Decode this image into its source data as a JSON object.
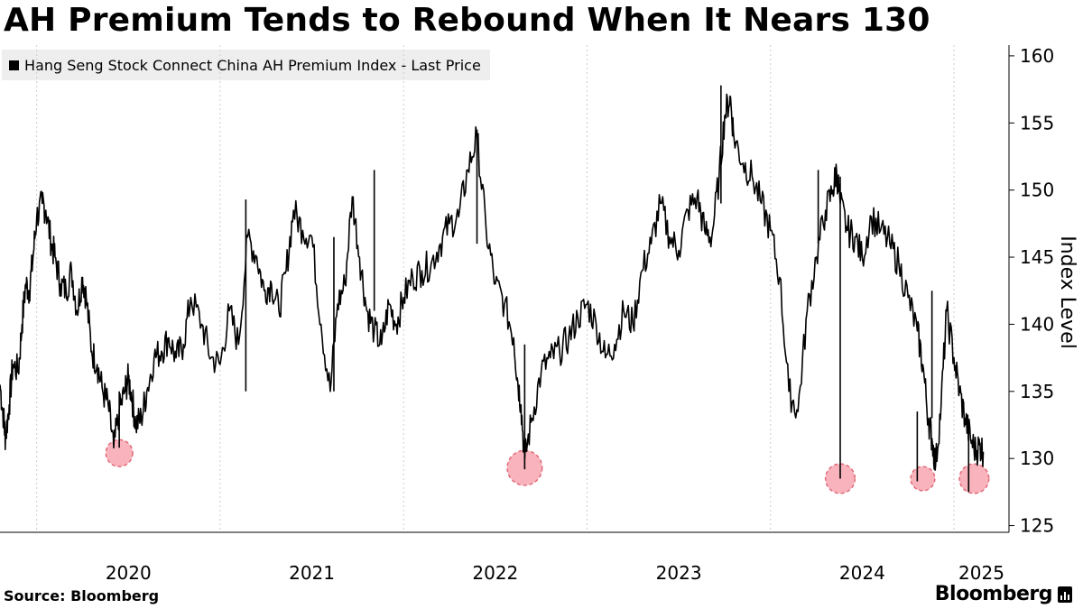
{
  "title": "AH Premium Tends to Rebound When It Nears 130",
  "source": "Source: Bloomberg",
  "brand": "Bloomberg",
  "chart_data": {
    "type": "line",
    "title": "AH Premium Tends to Rebound When It Nears 130",
    "ylabel": "Index Level",
    "xlabel": "",
    "ylim": [
      124.5,
      160.8
    ],
    "xlim": [
      2019.8,
      2025.3
    ],
    "y_ticks": [
      125,
      130,
      135,
      140,
      145,
      150,
      155,
      160
    ],
    "x_tick_labels": [
      "2020",
      "2021",
      "2022",
      "2023",
      "2024",
      "2025"
    ],
    "x_tick_positions": [
      2020.0,
      2021.0,
      2022.0,
      2023.0,
      2024.0,
      2025.0
    ],
    "legend": "Hang Seng Stock Connect China AH Premium Index - Last Price",
    "legend_position": "top-left",
    "colors": {
      "line": "#000000",
      "highlight_fill": "#f7a6b0",
      "highlight_edge": "#e06a78",
      "grid": "#cccccc"
    },
    "series": [
      {
        "name": "Hang Seng Stock Connect China AH Premium Index - Last Price",
        "x": [
          2019.8,
          2019.82,
          2019.83,
          2019.85,
          2019.87,
          2019.9,
          2019.92,
          2019.94,
          2019.96,
          2019.98,
          2020.0,
          2020.03,
          2020.05,
          2020.08,
          2020.1,
          2020.13,
          2020.16,
          2020.19,
          2020.22,
          2020.25,
          2020.27,
          2020.3,
          2020.33,
          2020.36,
          2020.39,
          2020.42,
          2020.45,
          2020.48,
          2020.5,
          2020.52,
          2020.54,
          2020.57,
          2020.6,
          2020.64,
          2020.68,
          2020.72,
          2020.76,
          2020.8,
          2020.84,
          2020.9,
          2020.95,
          2021.0,
          2021.05,
          2021.1,
          2021.15,
          2021.2,
          2021.24,
          2021.28,
          2021.32,
          2021.36,
          2021.4,
          2021.45,
          2021.5,
          2021.55,
          2021.6,
          2021.64,
          2021.68,
          2021.72,
          2021.76,
          2021.8,
          2021.84,
          2021.88,
          2021.92,
          2021.96,
          2022.0,
          2022.05,
          2022.1,
          2022.15,
          2022.2,
          2022.25,
          2022.3,
          2022.35,
          2022.4,
          2022.45,
          2022.5,
          2022.55,
          2022.6,
          2022.62,
          2022.64,
          2022.66,
          2022.7,
          2022.75,
          2022.8,
          2022.85,
          2022.9,
          2022.95,
          2023.0,
          2023.05,
          2023.1,
          2023.15,
          2023.2,
          2023.25,
          2023.3,
          2023.35,
          2023.4,
          2023.45,
          2023.5,
          2023.55,
          2023.6,
          2023.64,
          2023.68,
          2023.72,
          2023.75,
          2023.78,
          2023.8,
          2023.85,
          2023.9,
          2023.95,
          2024.0,
          2024.05,
          2024.1,
          2024.15,
          2024.2,
          2024.25,
          2024.3,
          2024.34,
          2024.36,
          2024.38,
          2024.42,
          2024.46,
          2024.5,
          2024.55,
          2024.6,
          2024.65,
          2024.7,
          2024.75,
          2024.8,
          2024.83,
          2024.86,
          2024.88,
          2024.9,
          2024.93,
          2024.96,
          2025.0,
          2025.03,
          2025.06,
          2025.09,
          2025.12,
          2025.14,
          2025.16
        ],
        "values": [
          135.5,
          133.0,
          131.5,
          134.0,
          137.0,
          136.5,
          140.0,
          143.0,
          142.5,
          145.0,
          148.0,
          149.0,
          148.5,
          146.0,
          145.0,
          143.0,
          142.5,
          144.0,
          141.0,
          143.5,
          142.0,
          138.0,
          137.0,
          135.0,
          134.0,
          130.8,
          133.5,
          135.0,
          136.0,
          134.5,
          132.5,
          133.0,
          135.0,
          137.5,
          138.0,
          139.0,
          137.5,
          138.5,
          142.0,
          140.0,
          137.5,
          137.0,
          141.0,
          138.5,
          146.5,
          145.0,
          142.5,
          143.0,
          141.0,
          144.0,
          148.5,
          147.0,
          146.5,
          140.0,
          135.0,
          141.5,
          143.0,
          149.5,
          145.0,
          141.0,
          139.5,
          138.5,
          141.5,
          140.0,
          142.0,
          143.5,
          144.0,
          144.5,
          146.0,
          147.5,
          148.0,
          151.5,
          154.0,
          147.0,
          143.0,
          141.5,
          139.0,
          136.0,
          134.0,
          130.0,
          133.0,
          136.5,
          137.5,
          138.0,
          139.0,
          140.5,
          141.5,
          140.0,
          137.5,
          138.5,
          141.0,
          140.0,
          144.0,
          146.0,
          149.0,
          146.5,
          145.5,
          148.5,
          149.5,
          147.0,
          146.5,
          151.0,
          155.5,
          157.0,
          154.0,
          152.0,
          151.0,
          149.0,
          147.0,
          143.5,
          135.0,
          133.5,
          141.0,
          145.0,
          148.5,
          150.0,
          151.5,
          149.0,
          147.0,
          146.5,
          145.0,
          148.0,
          147.0,
          146.0,
          144.5,
          142.0,
          139.5,
          137.0,
          133.0,
          131.5,
          129.5,
          134.0,
          141.0,
          137.5,
          135.0,
          133.0,
          131.5,
          130.5,
          131.0,
          130.5
        ],
        "spikes": [
          {
            "x": 2020.45,
            "low": 130.8,
            "high": 135.0
          },
          {
            "x": 2021.14,
            "low": 135.0,
            "high": 149.3
          },
          {
            "x": 2021.62,
            "low": 135.0,
            "high": 146.5
          },
          {
            "x": 2021.84,
            "low": 141.0,
            "high": 151.5
          },
          {
            "x": 2022.66,
            "low": 129.2,
            "high": 138.5
          },
          {
            "x": 2022.4,
            "low": 146.0,
            "high": 154.5
          },
          {
            "x": 2023.73,
            "low": 149.0,
            "high": 157.8
          },
          {
            "x": 2024.26,
            "low": 146.0,
            "high": 151.5
          },
          {
            "x": 2024.38,
            "low": 128.5,
            "high": 151.0
          },
          {
            "x": 2024.8,
            "low": 128.3,
            "high": 133.5
          },
          {
            "x": 2024.88,
            "low": 133.0,
            "high": 142.5
          },
          {
            "x": 2025.08,
            "low": 127.5,
            "high": 131.5
          }
        ]
      }
    ],
    "highlights": [
      {
        "x": 2020.45,
        "y": 130.4,
        "r": 1.0
      },
      {
        "x": 2022.66,
        "y": 129.3,
        "r": 1.3
      },
      {
        "x": 2024.38,
        "y": 128.5,
        "r": 1.1
      },
      {
        "x": 2024.83,
        "y": 128.5,
        "r": 0.9
      },
      {
        "x": 2025.11,
        "y": 128.5,
        "r": 1.1
      }
    ]
  }
}
